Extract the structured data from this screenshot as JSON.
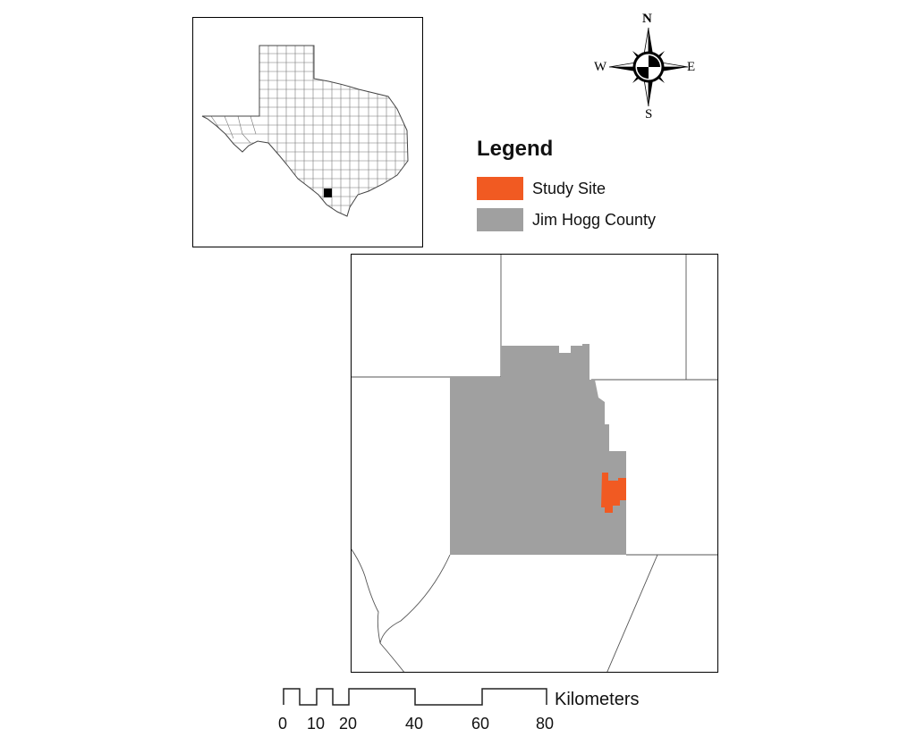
{
  "legend": {
    "title": "Legend",
    "items": [
      {
        "label": "Study Site",
        "color": "#f15a22"
      },
      {
        "label": "Jim Hogg County",
        "color": "#a0a0a0"
      }
    ]
  },
  "compass": {
    "north": "N",
    "south": "S",
    "east": "E",
    "west": "W"
  },
  "scale_bar": {
    "unit": "Kilometers",
    "ticks": [
      "0",
      "10",
      "20",
      "40",
      "60",
      "80"
    ]
  },
  "colors": {
    "study_site": "#f15a22",
    "county": "#a0a0a0",
    "locator": "#000000"
  }
}
